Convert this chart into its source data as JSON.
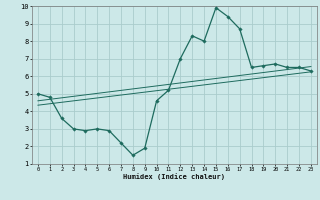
{
  "title": "",
  "xlabel": "Humidex (Indice chaleur)",
  "bg_color": "#cce8e8",
  "grid_color": "#aacccc",
  "line_color": "#1e6b5e",
  "xlim": [
    -0.5,
    23.5
  ],
  "ylim": [
    1,
    10
  ],
  "xticks": [
    0,
    1,
    2,
    3,
    4,
    5,
    6,
    7,
    8,
    9,
    10,
    11,
    12,
    13,
    14,
    15,
    16,
    17,
    18,
    19,
    20,
    21,
    22,
    23
  ],
  "yticks": [
    1,
    2,
    3,
    4,
    5,
    6,
    7,
    8,
    9,
    10
  ],
  "main_line_x": [
    0,
    1,
    2,
    3,
    4,
    5,
    6,
    7,
    8,
    9,
    10,
    11,
    12,
    13,
    14,
    15,
    16,
    17,
    18,
    19,
    20,
    21,
    22,
    23
  ],
  "main_line_y": [
    5.0,
    4.8,
    3.6,
    3.0,
    2.9,
    3.0,
    2.9,
    2.2,
    1.5,
    1.9,
    4.6,
    5.2,
    7.0,
    8.3,
    8.0,
    9.9,
    9.4,
    8.7,
    6.5,
    6.6,
    6.7,
    6.5,
    6.5,
    6.3
  ],
  "line1_x": [
    0,
    23
  ],
  "line1_y": [
    4.6,
    6.55
  ],
  "line2_x": [
    0,
    23
  ],
  "line2_y": [
    4.35,
    6.25
  ]
}
